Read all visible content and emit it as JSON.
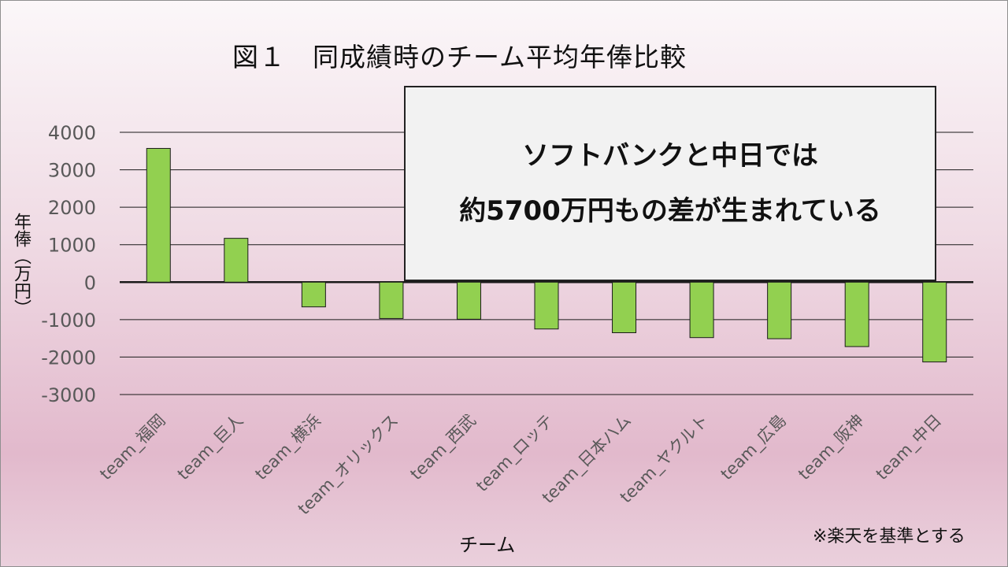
{
  "title": "図１　同成績時のチーム平均年俸比較",
  "callout": {
    "line1": "ソフトバンクと中日では",
    "line2": "約5700万円もの差が生まれている"
  },
  "footnote": "※楽天を基準とする",
  "colors": {
    "bar_fill": "#92d050",
    "bar_stroke": "#1a1a1a",
    "grid": "#1a1a1a",
    "text": "#595959"
  },
  "chart_data": {
    "type": "bar",
    "title": "図１　同成績時のチーム平均年俸比較",
    "xlabel": "チーム",
    "ylabel": "年俸（万円）",
    "categories": [
      "team_福岡",
      "team_巨人",
      "team_横浜",
      "team_オリックス",
      "team_西武",
      "team_ロッテ",
      "team_日本ハム",
      "team_ヤクルト",
      "team_広島",
      "team_阪神",
      "team_中日"
    ],
    "values": [
      3570,
      1170,
      -660,
      -970,
      -990,
      -1250,
      -1350,
      -1480,
      -1510,
      -1720,
      -2130
    ],
    "ylim": [
      -3000,
      4000
    ],
    "yticks": [
      4000,
      3000,
      2000,
      1000,
      0,
      -1000,
      -2000,
      -3000
    ],
    "grid": true,
    "legend": "none"
  }
}
